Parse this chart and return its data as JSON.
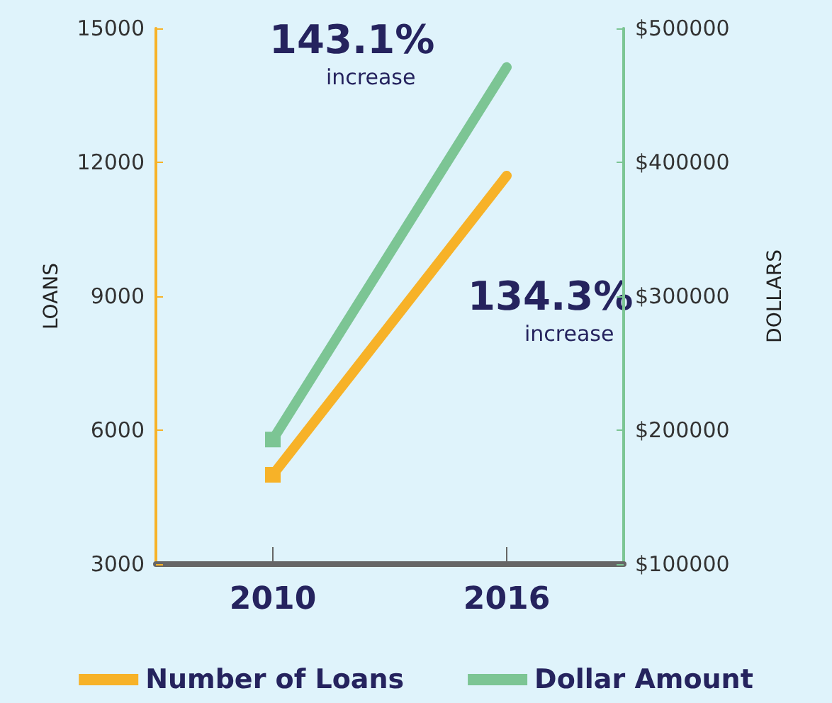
{
  "chart_data": {
    "type": "line",
    "categories": [
      "2010",
      "2016"
    ],
    "series": [
      {
        "name": "Number of Loans",
        "color": "#f7b228",
        "values": [
          5000,
          11700
        ]
      },
      {
        "name": "Dollar Amount",
        "color": "#7cc594",
        "values": [
          193000,
          471000
        ],
        "axis": "y2"
      }
    ],
    "ylabel": "LOANS",
    "y2label": "DOLLARS",
    "ylim": [
      3000,
      15000
    ],
    "yticks": [
      3000,
      6000,
      9000,
      12000,
      15000
    ],
    "y2lim": [
      100000,
      500000
    ],
    "y2ticks": [
      {
        "value": 100000,
        "label": "$100000"
      },
      {
        "value": 200000,
        "label": "$200000"
      },
      {
        "value": 300000,
        "label": "$300000"
      },
      {
        "value": 400000,
        "label": "$400000"
      },
      {
        "value": 500000,
        "label": "$500000"
      }
    ],
    "annotations": [
      "143.1% increase",
      "134.3% increase"
    ],
    "marker": "square",
    "line_style": "solid",
    "grid": false,
    "legend": "bottom"
  }
}
